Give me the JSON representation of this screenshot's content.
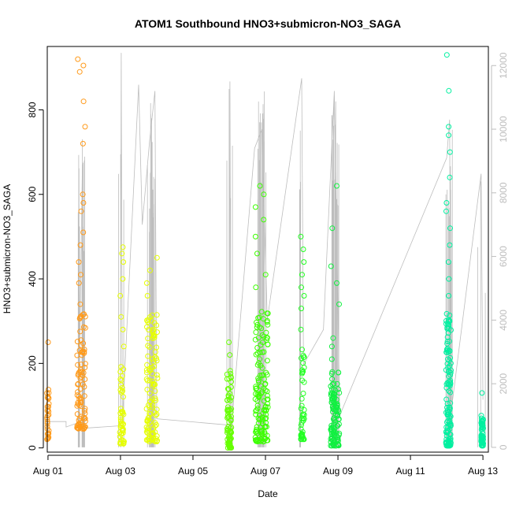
{
  "chart_data": {
    "type": "scatter",
    "title": "ATOM1 Southbound HNO3+submicron-NO3_SAGA",
    "xlabel": "Date",
    "ylabel": "HNO3+submicron-NO3_SAGA",
    "x_unit": "days in August",
    "xlim": [
      0.98,
      13.15
    ],
    "ylim": [
      -10,
      950
    ],
    "y_ticks": [
      0,
      200,
      400,
      600,
      800
    ],
    "x_ticks": [
      {
        "value": 1,
        "label": "Aug 01"
      },
      {
        "value": 3,
        "label": "Aug 03"
      },
      {
        "value": 5,
        "label": "Aug 05"
      },
      {
        "value": 7,
        "label": "Aug 07"
      },
      {
        "value": 9,
        "label": "Aug 09"
      },
      {
        "value": 11,
        "label": "Aug 11"
      },
      {
        "value": 13,
        "label": "Aug 13"
      }
    ],
    "secondary_axis": {
      "side": "right",
      "color": "#bdbdbd",
      "ylim": [
        -150,
        12600
      ],
      "ticks": [
        0,
        2000,
        4000,
        6000,
        8000,
        10000,
        12000
      ]
    },
    "grid": false,
    "legend": "none",
    "point_color_scale": [
      "#ff8c00",
      "#e6ff00",
      "#22ff00",
      "#00ffaa"
    ],
    "line_color": "#bdbdbd",
    "scatter_groups": [
      {
        "x": 1.0,
        "spread": 0.03,
        "n": 30,
        "ymin": 20,
        "ymax": 140,
        "outliers": [
          250
        ],
        "color": "#ff9a1a"
      },
      {
        "x": 1.92,
        "spread": 0.12,
        "n": 90,
        "ymin": 45,
        "ymax": 320,
        "outliers": [
          340,
          390,
          410,
          440,
          480,
          510,
          560,
          580,
          600,
          720,
          760,
          820,
          890,
          905,
          920
        ],
        "color": "#ff9a1a"
      },
      {
        "x": 3.04,
        "spread": 0.06,
        "n": 50,
        "ymin": 10,
        "ymax": 200,
        "outliers": [
          240,
          280,
          310,
          360,
          400,
          440,
          460,
          475
        ],
        "color": "#e6ff00"
      },
      {
        "x": 3.88,
        "spread": 0.16,
        "n": 110,
        "ymin": 15,
        "ymax": 320,
        "outliers": [
          360,
          390,
          420,
          450
        ],
        "color": "#e6ff00"
      },
      {
        "x": 6.0,
        "spread": 0.06,
        "n": 80,
        "ymin": 0,
        "ymax": 190,
        "outliers": [
          220,
          250
        ],
        "color": "#66ff00"
      },
      {
        "x": 6.9,
        "spread": 0.18,
        "n": 140,
        "ymin": 15,
        "ymax": 340,
        "outliers": [
          380,
          410,
          460,
          500,
          540,
          570,
          600,
          620
        ],
        "color": "#3cff00"
      },
      {
        "x": 8.02,
        "spread": 0.05,
        "n": 45,
        "ymin": 20,
        "ymax": 240,
        "outliers": [
          280,
          330,
          360,
          380,
          410,
          440,
          470,
          500
        ],
        "color": "#22ff22"
      },
      {
        "x": 8.92,
        "spread": 0.12,
        "n": 110,
        "ymin": 5,
        "ymax": 180,
        "outliers": [
          210,
          240,
          260,
          340,
          390,
          430,
          520,
          620
        ],
        "color": "#10f040"
      },
      {
        "x": 12.05,
        "spread": 0.07,
        "n": 120,
        "ymin": 5,
        "ymax": 320,
        "outliers": [
          360,
          400,
          440,
          480,
          520,
          560,
          580,
          640,
          700,
          740,
          760,
          845,
          930
        ],
        "color": "#00f0a0"
      },
      {
        "x": 12.98,
        "spread": 0.03,
        "n": 60,
        "ymin": 5,
        "ymax": 80,
        "outliers": [
          130
        ],
        "color": "#00f0a0"
      }
    ],
    "line_track": [
      [
        1.0,
        490
      ],
      [
        1.0,
        810
      ],
      [
        1.5,
        810
      ],
      [
        1.5,
        640
      ],
      [
        1.85,
        780
      ],
      [
        1.95,
        8900
      ],
      [
        1.98,
        600
      ],
      [
        3.0,
        680
      ],
      [
        3.02,
        12400
      ],
      [
        3.05,
        800
      ],
      [
        3.5,
        11400
      ],
      [
        3.6,
        7000
      ],
      [
        3.8,
        9600
      ],
      [
        3.95,
        11200
      ],
      [
        4.0,
        900
      ],
      [
        6.0,
        700
      ],
      [
        6.02,
        11500
      ],
      [
        6.05,
        500
      ],
      [
        6.7,
        9400
      ],
      [
        6.9,
        10000
      ],
      [
        7.05,
        4000
      ],
      [
        8.0,
        11600
      ],
      [
        8.05,
        2600
      ],
      [
        8.6,
        3700
      ],
      [
        8.9,
        11200
      ],
      [
        9.05,
        1000
      ],
      [
        12.0,
        9100
      ],
      [
        12.08,
        10300
      ],
      [
        12.12,
        1100
      ],
      [
        12.95,
        8600
      ],
      [
        13.0,
        1500
      ]
    ],
    "line_spikes": [
      {
        "x": 1.92,
        "top": 9700,
        "n": 14
      },
      {
        "x": 3.02,
        "top": 12400,
        "n": 3
      },
      {
        "x": 3.85,
        "top": 11100,
        "n": 22
      },
      {
        "x": 6.0,
        "top": 11500,
        "n": 4
      },
      {
        "x": 6.9,
        "top": 11200,
        "n": 26
      },
      {
        "x": 8.0,
        "top": 11600,
        "n": 3
      },
      {
        "x": 8.92,
        "top": 11000,
        "n": 20
      },
      {
        "x": 12.06,
        "top": 10300,
        "n": 14
      },
      {
        "x": 12.96,
        "top": 8600,
        "n": 3
      }
    ]
  }
}
